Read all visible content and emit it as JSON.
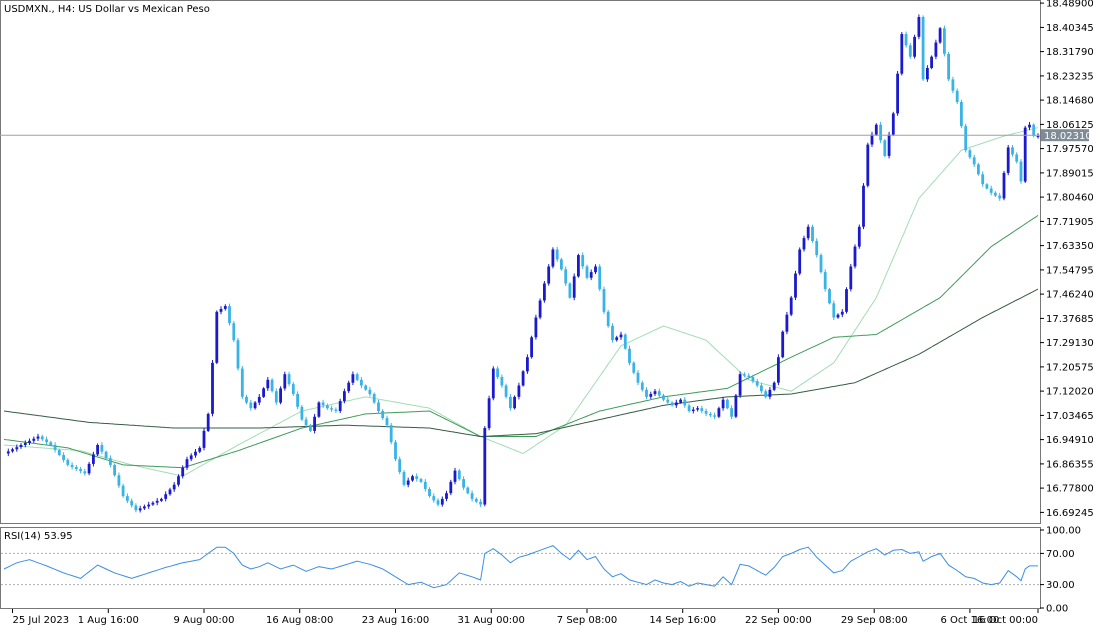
{
  "window": {
    "symbol_title": "USDMXN., H4:  US Dollar vs Mexican Peso",
    "indicator_title": "RSI(14) 53.95"
  },
  "colors": {
    "bull": "#1a1acc",
    "bear": "#39b3e6",
    "ma_fast": "#a3dcb5",
    "ma_mid": "#3f9a5a",
    "ma_slow": "#345c43",
    "rsi": "#3d8fe0",
    "bid_line": "#a0a0a0",
    "bid_label_bg": "#7f8c96"
  },
  "chart_data": [
    {
      "type": "candlestick",
      "title": "USDMXN., H4:  US Dollar vs Mexican Peso",
      "ylim": [
        16.655,
        18.5
      ],
      "y_ticks": [
        "18.48900",
        "18.40345",
        "18.31790",
        "18.23235",
        "18.14680",
        "18.06125",
        "17.97570",
        "17.89015",
        "17.80460",
        "17.71905",
        "17.63350",
        "17.54795",
        "17.46240",
        "17.37685",
        "17.29130",
        "17.20575",
        "17.12020",
        "17.03465",
        "16.94910",
        "16.86355",
        "16.77800",
        "16.69245"
      ],
      "x_labels": [
        "25 Jul 2023",
        "1 Aug 16:00",
        "9 Aug 00:00",
        "16 Aug 08:00",
        "23 Aug 16:00",
        "31 Aug 00:00",
        "7 Sep 08:00",
        "14 Sep 16:00",
        "22 Sep 00:00",
        "29 Sep 08:00",
        "6 Oct 16:00",
        "16 Oct 00:00"
      ],
      "current_price": "18.02310",
      "close_path": [
        [
          0,
          16.9
        ],
        [
          4,
          16.93
        ],
        [
          8,
          16.96
        ],
        [
          11,
          16.93
        ],
        [
          15,
          16.86
        ],
        [
          19,
          16.83
        ],
        [
          22,
          16.93
        ],
        [
          25,
          16.86
        ],
        [
          28,
          16.75
        ],
        [
          31,
          16.7
        ],
        [
          34,
          16.72
        ],
        [
          37,
          16.74
        ],
        [
          40,
          16.79
        ],
        [
          43,
          16.88
        ],
        [
          46,
          16.92
        ],
        [
          48,
          17.04
        ],
        [
          50,
          17.4
        ],
        [
          52,
          17.42
        ],
        [
          54,
          17.3
        ],
        [
          56,
          17.1
        ],
        [
          58,
          17.06
        ],
        [
          60,
          17.1
        ],
        [
          62,
          17.16
        ],
        [
          64,
          17.08
        ],
        [
          66,
          17.18
        ],
        [
          68,
          17.11
        ],
        [
          70,
          17.02
        ],
        [
          72,
          16.98
        ],
        [
          74,
          17.08
        ],
        [
          76,
          17.06
        ],
        [
          78,
          17.05
        ],
        [
          80,
          17.12
        ],
        [
          82,
          17.18
        ],
        [
          84,
          17.14
        ],
        [
          86,
          17.11
        ],
        [
          88,
          17.05
        ],
        [
          90,
          17.0
        ],
        [
          92,
          16.88
        ],
        [
          94,
          16.79
        ],
        [
          96,
          16.82
        ],
        [
          98,
          16.8
        ],
        [
          100,
          16.75
        ],
        [
          102,
          16.72
        ],
        [
          104,
          16.76
        ],
        [
          106,
          16.84
        ],
        [
          108,
          16.78
        ],
        [
          110,
          16.74
        ],
        [
          112,
          16.72
        ],
        [
          113,
          16.99
        ],
        [
          115,
          17.2
        ],
        [
          117,
          17.14
        ],
        [
          119,
          17.06
        ],
        [
          121,
          17.14
        ],
        [
          123,
          17.24
        ],
        [
          125,
          17.38
        ],
        [
          127,
          17.5
        ],
        [
          129,
          17.62
        ],
        [
          131,
          17.55
        ],
        [
          133,
          17.45
        ],
        [
          135,
          17.6
        ],
        [
          137,
          17.52
        ],
        [
          139,
          17.56
        ],
        [
          141,
          17.4
        ],
        [
          143,
          17.3
        ],
        [
          145,
          17.32
        ],
        [
          147,
          17.22
        ],
        [
          149,
          17.15
        ],
        [
          151,
          17.1
        ],
        [
          153,
          17.12
        ],
        [
          155,
          17.09
        ],
        [
          157,
          17.07
        ],
        [
          159,
          17.09
        ],
        [
          161,
          17.05
        ],
        [
          163,
          17.06
        ],
        [
          165,
          17.04
        ],
        [
          167,
          17.03
        ],
        [
          169,
          17.09
        ],
        [
          171,
          17.03
        ],
        [
          173,
          17.18
        ],
        [
          175,
          17.17
        ],
        [
          177,
          17.14
        ],
        [
          179,
          17.1
        ],
        [
          181,
          17.15
        ],
        [
          183,
          17.33
        ],
        [
          185,
          17.45
        ],
        [
          187,
          17.62
        ],
        [
          189,
          17.7
        ],
        [
          191,
          17.6
        ],
        [
          193,
          17.48
        ],
        [
          195,
          17.38
        ],
        [
          197,
          17.4
        ],
        [
          199,
          17.56
        ],
        [
          201,
          17.7
        ],
        [
          203,
          17.99
        ],
        [
          205,
          18.06
        ],
        [
          207,
          17.95
        ],
        [
          209,
          18.1
        ],
        [
          211,
          18.38
        ],
        [
          213,
          18.3
        ],
        [
          215,
          18.44
        ],
        [
          216,
          18.22
        ],
        [
          218,
          18.3
        ],
        [
          220,
          18.4
        ],
        [
          222,
          18.22
        ],
        [
          224,
          18.14
        ],
        [
          226,
          17.97
        ],
        [
          228,
          17.92
        ],
        [
          230,
          17.85
        ],
        [
          232,
          17.82
        ],
        [
          234,
          17.8
        ],
        [
          236,
          17.98
        ],
        [
          238,
          17.93
        ],
        [
          239,
          17.86
        ],
        [
          240,
          18.05
        ],
        [
          241,
          18.06
        ],
        [
          242,
          18.02
        ]
      ],
      "series": [
        {
          "name": "fast MA",
          "points": [
            [
              0,
              16.93
            ],
            [
              18,
              16.91
            ],
            [
              30,
              16.86
            ],
            [
              42,
              16.82
            ],
            [
              55,
              16.93
            ],
            [
              70,
              17.05
            ],
            [
              85,
              17.1
            ],
            [
              100,
              17.06
            ],
            [
              112,
              16.96
            ],
            [
              122,
              16.9
            ],
            [
              132,
              17.0
            ],
            [
              145,
              17.28
            ],
            [
              155,
              17.35
            ],
            [
              165,
              17.3
            ],
            [
              175,
              17.16
            ],
            [
              185,
              17.12
            ],
            [
              195,
              17.22
            ],
            [
              205,
              17.45
            ],
            [
              215,
              17.8
            ],
            [
              225,
              17.97
            ],
            [
              235,
              18.02
            ],
            [
              243,
              18.05
            ]
          ]
        },
        {
          "name": "mid MA",
          "points": [
            [
              0,
              16.95
            ],
            [
              15,
              16.92
            ],
            [
              28,
              16.86
            ],
            [
              42,
              16.85
            ],
            [
              55,
              16.91
            ],
            [
              70,
              16.99
            ],
            [
              85,
              17.04
            ],
            [
              100,
              17.05
            ],
            [
              112,
              16.96
            ],
            [
              125,
              16.96
            ],
            [
              140,
              17.05
            ],
            [
              155,
              17.1
            ],
            [
              170,
              17.13
            ],
            [
              185,
              17.24
            ],
            [
              195,
              17.31
            ],
            [
              205,
              17.32
            ],
            [
              220,
              17.45
            ],
            [
              232,
              17.63
            ],
            [
              243,
              17.74
            ]
          ]
        },
        {
          "name": "slow MA",
          "points": [
            [
              0,
              17.05
            ],
            [
              20,
              17.01
            ],
            [
              40,
              16.99
            ],
            [
              60,
              16.99
            ],
            [
              80,
              17.0
            ],
            [
              100,
              16.99
            ],
            [
              112,
              16.96
            ],
            [
              125,
              16.97
            ],
            [
              140,
              17.02
            ],
            [
              155,
              17.07
            ],
            [
              170,
              17.1
            ],
            [
              185,
              17.11
            ],
            [
              200,
              17.15
            ],
            [
              215,
              17.25
            ],
            [
              230,
              17.38
            ],
            [
              243,
              17.48
            ]
          ]
        }
      ]
    },
    {
      "type": "line",
      "title": "RSI(14) 53.95",
      "ylim": [
        0,
        100
      ],
      "y_ticks": [
        "100.00",
        "70.00",
        "30.00",
        "0.00"
      ],
      "levels": [
        70,
        30
      ],
      "series": [
        {
          "name": "RSI(14)",
          "points": [
            [
              0,
              50
            ],
            [
              3,
              58
            ],
            [
              6,
              62
            ],
            [
              10,
              54
            ],
            [
              14,
              45
            ],
            [
              18,
              38
            ],
            [
              22,
              55
            ],
            [
              26,
              45
            ],
            [
              30,
              38
            ],
            [
              34,
              45
            ],
            [
              38,
              52
            ],
            [
              42,
              58
            ],
            [
              46,
              62
            ],
            [
              48,
              70
            ],
            [
              50,
              78
            ],
            [
              52,
              78
            ],
            [
              54,
              70
            ],
            [
              56,
              55
            ],
            [
              58,
              50
            ],
            [
              60,
              53
            ],
            [
              62,
              58
            ],
            [
              65,
              50
            ],
            [
              68,
              55
            ],
            [
              71,
              47
            ],
            [
              74,
              53
            ],
            [
              77,
              50
            ],
            [
              80,
              55
            ],
            [
              83,
              60
            ],
            [
              86,
              56
            ],
            [
              89,
              50
            ],
            [
              92,
              40
            ],
            [
              95,
              30
            ],
            [
              98,
              33
            ],
            [
              101,
              26
            ],
            [
              104,
              30
            ],
            [
              107,
              45
            ],
            [
              110,
              40
            ],
            [
              112,
              36
            ],
            [
              113,
              70
            ],
            [
              115,
              76
            ],
            [
              117,
              68
            ],
            [
              119,
              58
            ],
            [
              121,
              65
            ],
            [
              123,
              68
            ],
            [
              125,
              72
            ],
            [
              127,
              76
            ],
            [
              129,
              80
            ],
            [
              131,
              70
            ],
            [
              133,
              62
            ],
            [
              135,
              74
            ],
            [
              137,
              62
            ],
            [
              139,
              66
            ],
            [
              141,
              50
            ],
            [
              143,
              40
            ],
            [
              145,
              44
            ],
            [
              147,
              36
            ],
            [
              149,
              33
            ],
            [
              151,
              30
            ],
            [
              153,
              36
            ],
            [
              155,
              32
            ],
            [
              157,
              30
            ],
            [
              159,
              34
            ],
            [
              161,
              28
            ],
            [
              163,
              32
            ],
            [
              165,
              30
            ],
            [
              167,
              28
            ],
            [
              169,
              40
            ],
            [
              171,
              30
            ],
            [
              173,
              56
            ],
            [
              175,
              54
            ],
            [
              177,
              48
            ],
            [
              179,
              42
            ],
            [
              181,
              52
            ],
            [
              183,
              66
            ],
            [
              185,
              70
            ],
            [
              187,
              75
            ],
            [
              189,
              78
            ],
            [
              191,
              65
            ],
            [
              193,
              55
            ],
            [
              195,
              45
            ],
            [
              197,
              48
            ],
            [
              199,
              60
            ],
            [
              201,
              66
            ],
            [
              203,
              72
            ],
            [
              205,
              76
            ],
            [
              207,
              68
            ],
            [
              209,
              74
            ],
            [
              211,
              75
            ],
            [
              213,
              70
            ],
            [
              215,
              72
            ],
            [
              216,
              60
            ],
            [
              218,
              66
            ],
            [
              220,
              70
            ],
            [
              222,
              55
            ],
            [
              224,
              48
            ],
            [
              226,
              40
            ],
            [
              228,
              38
            ],
            [
              230,
              32
            ],
            [
              232,
              30
            ],
            [
              234,
              32
            ],
            [
              236,
              48
            ],
            [
              238,
              40
            ],
            [
              239,
              35
            ],
            [
              240,
              50
            ],
            [
              241,
              54
            ],
            [
              242,
              54
            ]
          ]
        }
      ]
    }
  ]
}
